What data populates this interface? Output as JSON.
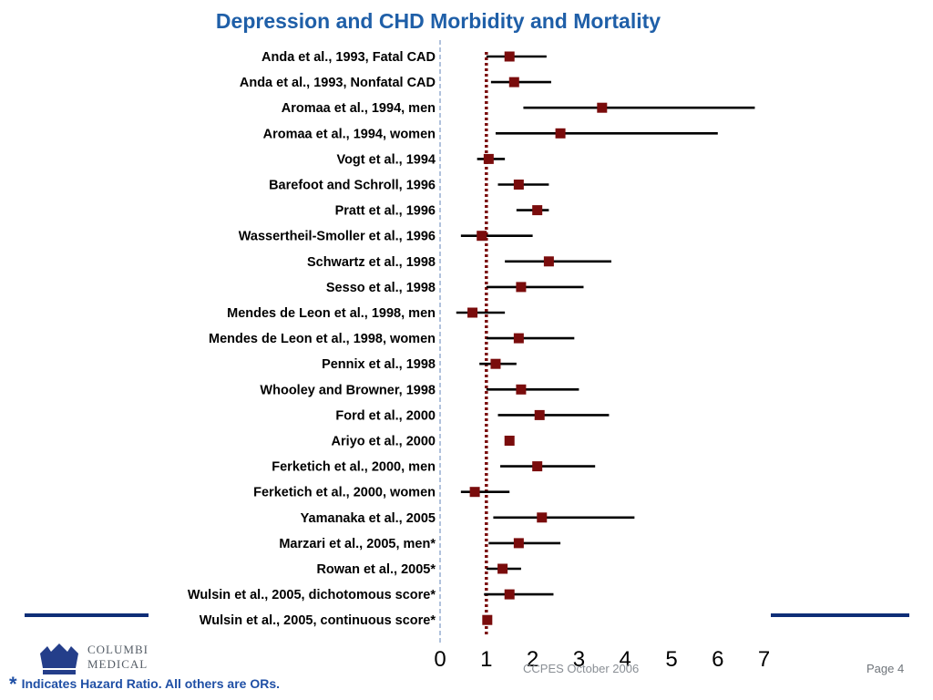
{
  "title": "Depression and CHD Morbidity and Mortality",
  "colors": {
    "title": "#1f5fa8",
    "marker": "#7a0c0c",
    "ci_line": "#000000",
    "reference_line": "#7a0c0c",
    "axis_line": "#7d9ac4",
    "band": "#0e2e77",
    "footnote": "#1f4fa5"
  },
  "chart_data": {
    "type": "forest",
    "x_ticks": [
      0,
      1,
      2,
      3,
      4,
      5,
      6,
      7
    ],
    "xlim": [
      0,
      7
    ],
    "reference_value": 1,
    "rows": [
      {
        "label": "Anda et al., 1993, Fatal CAD",
        "estimate": 1.5,
        "lower": 1.0,
        "upper": 2.3
      },
      {
        "label": "Anda et al., 1993, Nonfatal CAD",
        "estimate": 1.6,
        "lower": 1.1,
        "upper": 2.4
      },
      {
        "label": "Aromaa et al., 1994, men",
        "estimate": 3.5,
        "lower": 1.8,
        "upper": 6.8
      },
      {
        "label": "Aromaa et al., 1994, women",
        "estimate": 2.6,
        "lower": 1.2,
        "upper": 6.0
      },
      {
        "label": "Vogt et al., 1994",
        "estimate": 1.05,
        "lower": 0.8,
        "upper": 1.4
      },
      {
        "label": "Barefoot and Schroll, 1996",
        "estimate": 1.7,
        "lower": 1.25,
        "upper": 2.35
      },
      {
        "label": "Pratt et al., 1996",
        "estimate": 2.1,
        "lower": 1.65,
        "upper": 2.35
      },
      {
        "label": "Wassertheil-Smoller et al., 1996",
        "estimate": 0.9,
        "lower": 0.45,
        "upper": 2.0
      },
      {
        "label": "Schwartz et al., 1998",
        "estimate": 2.35,
        "lower": 1.4,
        "upper": 3.7
      },
      {
        "label": "Sesso et al., 1998",
        "estimate": 1.75,
        "lower": 1.0,
        "upper": 3.1
      },
      {
        "label": "Mendes de Leon et al., 1998, men",
        "estimate": 0.7,
        "lower": 0.35,
        "upper": 1.4
      },
      {
        "label": "Mendes de Leon et al., 1998, women",
        "estimate": 1.7,
        "lower": 1.0,
        "upper": 2.9
      },
      {
        "label": "Pennix et al., 1998",
        "estimate": 1.2,
        "lower": 0.85,
        "upper": 1.65
      },
      {
        "label": "Whooley and Browner, 1998",
        "estimate": 1.75,
        "lower": 1.0,
        "upper": 3.0
      },
      {
        "label": "Ford et al., 2000",
        "estimate": 2.15,
        "lower": 1.25,
        "upper": 3.65
      },
      {
        "label": "Ariyo et al., 2000",
        "estimate": 1.5,
        "lower": 1.45,
        "upper": 1.55
      },
      {
        "label": "Ferketich et al., 2000, men",
        "estimate": 2.1,
        "lower": 1.3,
        "upper": 3.35
      },
      {
        "label": "Ferketich et al., 2000, women",
        "estimate": 0.75,
        "lower": 0.45,
        "upper": 1.5
      },
      {
        "label": "Yamanaka et al., 2005",
        "estimate": 2.2,
        "lower": 1.15,
        "upper": 4.2
      },
      {
        "label": "Marzari et al., 2005, men*",
        "estimate": 1.7,
        "lower": 1.05,
        "upper": 2.6
      },
      {
        "label": "Rowan et al., 2005*",
        "estimate": 1.35,
        "lower": 1.0,
        "upper": 1.75
      },
      {
        "label": "Wulsin et al., 2005, dichotomous score*",
        "estimate": 1.5,
        "lower": 0.95,
        "upper": 2.45
      },
      {
        "label": "Wulsin et al., 2005, continuous score*",
        "estimate": 1.02,
        "lower": 1.0,
        "upper": 1.05
      }
    ]
  },
  "footer": {
    "logo_text_line1": "COLUMBI",
    "logo_text_line2": "MEDICAL",
    "center_text": "CCPES October 2006",
    "page": "Page 4"
  },
  "footnote": {
    "star": "*",
    "text": "Indicates Hazard Ratio.  All others are ORs."
  }
}
